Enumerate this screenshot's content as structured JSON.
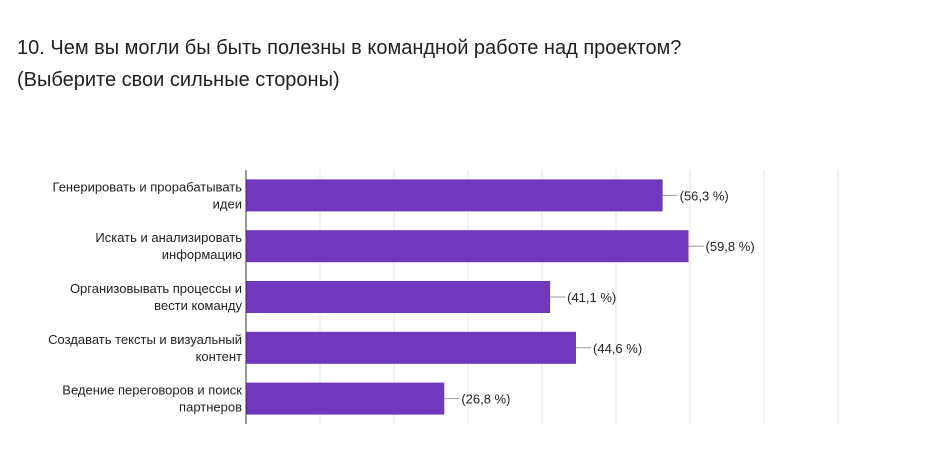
{
  "question": {
    "title": "10. Чем вы могли бы быть полезны в командной работе над проектом? (Выберите свои сильные стороны)"
  },
  "colors": {
    "bar": "#7137bd",
    "grid": "#e6e6e6",
    "axis": "#333333",
    "leader": "#999999"
  },
  "chart_data": {
    "type": "bar",
    "orientation": "horizontal",
    "categories": [
      [
        "Генерировать и прорабатывать",
        "идеи"
      ],
      [
        "Искать и анализировать",
        "информацию"
      ],
      [
        "Организовывать процессы и",
        "вести команду"
      ],
      [
        "Создавать тексты и визуальный",
        "контент"
      ],
      [
        "Ведение переговоров и поиск",
        "партнеров"
      ]
    ],
    "values": [
      56.3,
      59.8,
      41.1,
      44.6,
      26.8
    ],
    "value_labels": [
      "(56,3 %)",
      "(59,8 %)",
      "(41,1 %)",
      "(44,6 %)",
      "(26,8 %)"
    ],
    "xlim": [
      0,
      80
    ],
    "grid": true,
    "legend": "none"
  }
}
